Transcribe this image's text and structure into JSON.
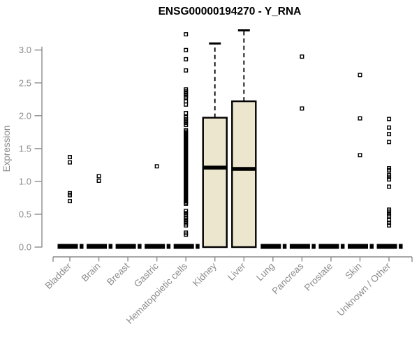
{
  "title": "ENSG00000194270 - Y_RNA",
  "chart_data": {
    "type": "boxplot",
    "title": "ENSG00000194270 - Y_RNA",
    "ylabel": "Expression",
    "xlabel": "",
    "ylim": [
      0,
      3.3
    ],
    "yticks": [
      0.0,
      0.5,
      1.0,
      1.5,
      2.0,
      2.5,
      3.0
    ],
    "grid": false,
    "legend": "none",
    "categories": [
      "Bladder",
      "Brain",
      "Breast",
      "Gastric",
      "Hematopoietic cells",
      "Kidney",
      "Liver",
      "Lung",
      "Pancreas",
      "Prostate",
      "Skin",
      "Unknown / Other"
    ],
    "boxes": [
      {
        "category": "Bladder",
        "slug": "bladder",
        "collapsed": true,
        "q1": 0,
        "median": 0,
        "q3": 0,
        "whisker_low": 0,
        "whisker_high": 0,
        "outliers": [
          1.37,
          1.29,
          0.82,
          0.79,
          0.7
        ]
      },
      {
        "category": "Brain",
        "slug": "brain",
        "collapsed": true,
        "q1": 0,
        "median": 0,
        "q3": 0,
        "whisker_low": 0,
        "whisker_high": 0,
        "outliers": [
          1.08,
          1.01
        ]
      },
      {
        "category": "Breast",
        "slug": "breast",
        "collapsed": true,
        "q1": 0,
        "median": 0,
        "q3": 0,
        "whisker_low": 0,
        "whisker_high": 0,
        "outliers": []
      },
      {
        "category": "Gastric",
        "slug": "gastric",
        "collapsed": true,
        "q1": 0,
        "median": 0,
        "q3": 0,
        "whisker_low": 0,
        "whisker_high": 0,
        "outliers": [
          1.23
        ]
      },
      {
        "category": "Hematopoietic cells",
        "slug": "hematopoietic-cells",
        "collapsed": true,
        "q1": 0,
        "median": 0,
        "q3": 0,
        "whisker_low": 0,
        "whisker_high": 0,
        "outliers": [
          3.24,
          3.0,
          2.86,
          2.69,
          2.4,
          2.37,
          2.34,
          2.31,
          2.28,
          2.22,
          2.17,
          2.04,
          1.98,
          1.95,
          1.92,
          1.89,
          1.86,
          1.78,
          1.76,
          1.74,
          1.72,
          1.7,
          1.68,
          1.66,
          1.64,
          1.62,
          1.6,
          1.58,
          1.56,
          1.54,
          1.52,
          1.5,
          1.48,
          1.46,
          1.44,
          1.42,
          1.4,
          1.38,
          1.36,
          1.34,
          1.32,
          1.3,
          1.28,
          1.26,
          1.24,
          1.22,
          1.2,
          1.18,
          1.16,
          1.14,
          1.12,
          1.1,
          1.08,
          1.06,
          1.04,
          1.02,
          1.0,
          0.98,
          0.96,
          0.94,
          0.92,
          0.9,
          0.88,
          0.86,
          0.84,
          0.82,
          0.8,
          0.78,
          0.76,
          0.74,
          0.72,
          0.7,
          0.68,
          0.66,
          0.55,
          0.52,
          0.49,
          0.45,
          0.42,
          0.39,
          0.36,
          0.33,
          0.22,
          0.19
        ]
      },
      {
        "category": "Kidney",
        "slug": "kidney",
        "collapsed": false,
        "q1": 0,
        "median": 1.21,
        "q3": 1.97,
        "whisker_low": 0,
        "whisker_high": 3.1,
        "outliers": []
      },
      {
        "category": "Liver",
        "slug": "liver",
        "collapsed": false,
        "q1": 0,
        "median": 1.19,
        "q3": 2.22,
        "whisker_low": 0,
        "whisker_high": 3.3,
        "outliers": []
      },
      {
        "category": "Lung",
        "slug": "lung",
        "collapsed": true,
        "q1": 0,
        "median": 0,
        "q3": 0,
        "whisker_low": 0,
        "whisker_high": 0,
        "outliers": []
      },
      {
        "category": "Pancreas",
        "slug": "pancreas",
        "collapsed": true,
        "q1": 0,
        "median": 0,
        "q3": 0,
        "whisker_low": 0,
        "whisker_high": 0,
        "outliers": [
          2.9,
          2.11
        ]
      },
      {
        "category": "Prostate",
        "slug": "prostate",
        "collapsed": true,
        "q1": 0,
        "median": 0,
        "q3": 0,
        "whisker_low": 0,
        "whisker_high": 0,
        "outliers": []
      },
      {
        "category": "Skin",
        "slug": "skin",
        "collapsed": true,
        "q1": 0,
        "median": 0,
        "q3": 0,
        "whisker_low": 0,
        "whisker_high": 0,
        "outliers": [
          2.62,
          1.96,
          1.4
        ]
      },
      {
        "category": "Unknown / Other",
        "slug": "unknown-other",
        "collapsed": true,
        "q1": 0,
        "median": 0,
        "q3": 0,
        "whisker_low": 0,
        "whisker_high": 0,
        "outliers": [
          1.95,
          1.82,
          1.72,
          1.6,
          1.2,
          1.17,
          1.1,
          1.07,
          1.03,
          0.92,
          0.57,
          0.54,
          0.5,
          0.47,
          0.41,
          0.37,
          0.33
        ]
      }
    ],
    "colors": {
      "box_fill": "#ece6cf",
      "box_stroke": "#000000",
      "median": "#000000",
      "outlier_stroke": "#000000",
      "axis": "#8c8c8c",
      "tick_label": "#8c8c8c",
      "title": "#000000",
      "background": "#ffffff"
    }
  }
}
